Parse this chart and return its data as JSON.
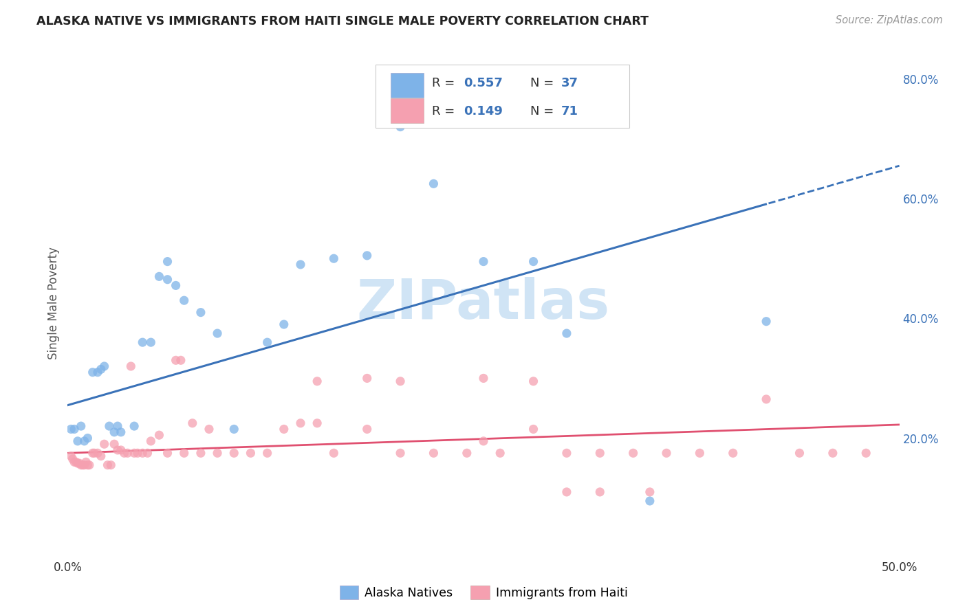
{
  "title": "ALASKA NATIVE VS IMMIGRANTS FROM HAITI SINGLE MALE POVERTY CORRELATION CHART",
  "source": "Source: ZipAtlas.com",
  "ylabel": "Single Male Poverty",
  "xlim": [
    0.0,
    0.5
  ],
  "ylim": [
    0.0,
    0.85
  ],
  "x_ticks": [
    0.0,
    0.1,
    0.2,
    0.3,
    0.4,
    0.5
  ],
  "x_tick_labels": [
    "0.0%",
    "",
    "",
    "",
    "",
    "50.0%"
  ],
  "y_ticks_right": [
    0.2,
    0.4,
    0.6,
    0.8
  ],
  "y_tick_labels_right": [
    "20.0%",
    "40.0%",
    "60.0%",
    "80.0%"
  ],
  "blue_scatter_color": "#7EB3E8",
  "pink_scatter_color": "#F5A0B0",
  "blue_line_color": "#3A72B8",
  "pink_line_color": "#E05070",
  "watermark_text": "ZIPatlas",
  "watermark_color": "#D0E4F5",
  "legend_label1": "Alaska Natives",
  "legend_label2": "Immigrants from Haiti",
  "legend_r1": "0.557",
  "legend_n1": "37",
  "legend_r2": "0.149",
  "legend_n2": "71",
  "blue_line_intercept": 0.255,
  "blue_line_slope": 0.8,
  "pink_line_intercept": 0.175,
  "pink_line_slope": 0.095,
  "alaska_x": [
    0.002,
    0.004,
    0.006,
    0.008,
    0.01,
    0.012,
    0.015,
    0.018,
    0.02,
    0.022,
    0.025,
    0.028,
    0.03,
    0.032,
    0.05,
    0.055,
    0.06,
    0.065,
    0.07,
    0.08,
    0.09,
    0.1,
    0.12,
    0.13,
    0.14,
    0.16,
    0.18,
    0.2,
    0.22,
    0.25,
    0.28,
    0.3,
    0.35,
    0.42,
    0.06,
    0.04,
    0.045
  ],
  "alaska_y": [
    0.215,
    0.215,
    0.195,
    0.22,
    0.195,
    0.2,
    0.31,
    0.31,
    0.315,
    0.32,
    0.22,
    0.21,
    0.22,
    0.21,
    0.36,
    0.47,
    0.465,
    0.455,
    0.43,
    0.41,
    0.375,
    0.215,
    0.36,
    0.39,
    0.49,
    0.5,
    0.505,
    0.72,
    0.625,
    0.495,
    0.495,
    0.375,
    0.095,
    0.395,
    0.495,
    0.22,
    0.36
  ],
  "haiti_x": [
    0.002,
    0.003,
    0.004,
    0.005,
    0.006,
    0.007,
    0.008,
    0.009,
    0.01,
    0.011,
    0.012,
    0.013,
    0.015,
    0.016,
    0.018,
    0.02,
    0.022,
    0.024,
    0.026,
    0.028,
    0.03,
    0.032,
    0.034,
    0.036,
    0.038,
    0.04,
    0.042,
    0.045,
    0.048,
    0.05,
    0.055,
    0.06,
    0.065,
    0.068,
    0.07,
    0.075,
    0.08,
    0.085,
    0.09,
    0.1,
    0.11,
    0.12,
    0.13,
    0.14,
    0.15,
    0.16,
    0.18,
    0.2,
    0.22,
    0.24,
    0.25,
    0.26,
    0.28,
    0.3,
    0.32,
    0.34,
    0.36,
    0.38,
    0.4,
    0.42,
    0.44,
    0.46,
    0.48,
    0.3,
    0.32,
    0.35,
    0.25,
    0.15,
    0.2,
    0.28,
    0.18
  ],
  "haiti_y": [
    0.17,
    0.165,
    0.16,
    0.16,
    0.158,
    0.158,
    0.155,
    0.155,
    0.155,
    0.16,
    0.155,
    0.155,
    0.175,
    0.175,
    0.175,
    0.17,
    0.19,
    0.155,
    0.155,
    0.19,
    0.18,
    0.18,
    0.175,
    0.175,
    0.32,
    0.175,
    0.175,
    0.175,
    0.175,
    0.195,
    0.205,
    0.175,
    0.33,
    0.33,
    0.175,
    0.225,
    0.175,
    0.215,
    0.175,
    0.175,
    0.175,
    0.175,
    0.215,
    0.225,
    0.225,
    0.175,
    0.215,
    0.175,
    0.175,
    0.175,
    0.195,
    0.175,
    0.215,
    0.175,
    0.175,
    0.175,
    0.175,
    0.175,
    0.175,
    0.265,
    0.175,
    0.175,
    0.175,
    0.11,
    0.11,
    0.11,
    0.3,
    0.295,
    0.295,
    0.295,
    0.3
  ],
  "background_color": "#FFFFFF",
  "grid_color": "#DDDDDD",
  "grid_style": "--"
}
